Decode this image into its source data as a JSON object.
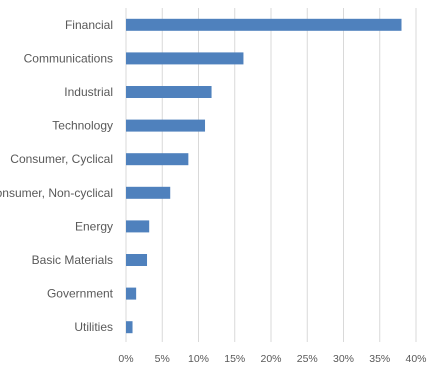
{
  "chart_data": {
    "type": "bar",
    "orientation": "horizontal",
    "title": "",
    "xlabel": "",
    "ylabel": "",
    "categories": [
      "Financial",
      "Communications",
      "Industrial",
      "Technology",
      "Consumer, Cyclical",
      "Consumer, Non-cyclical",
      "Energy",
      "Basic Materials",
      "Government",
      "Utilities"
    ],
    "values": [
      38.0,
      16.2,
      11.8,
      10.9,
      8.6,
      6.1,
      3.2,
      2.9,
      1.4,
      0.9
    ],
    "xlim": [
      0,
      40
    ],
    "xticks": [
      0,
      5,
      10,
      15,
      20,
      25,
      30,
      35,
      40
    ],
    "xtick_labels": [
      "0%",
      "5%",
      "10%",
      "15%",
      "20%",
      "25%",
      "30%",
      "35%",
      "40%"
    ],
    "grid": true,
    "legend": "none",
    "bar_color": "#4f81bd",
    "grid_color": "#d9d9d9",
    "label_color": "#595959"
  }
}
